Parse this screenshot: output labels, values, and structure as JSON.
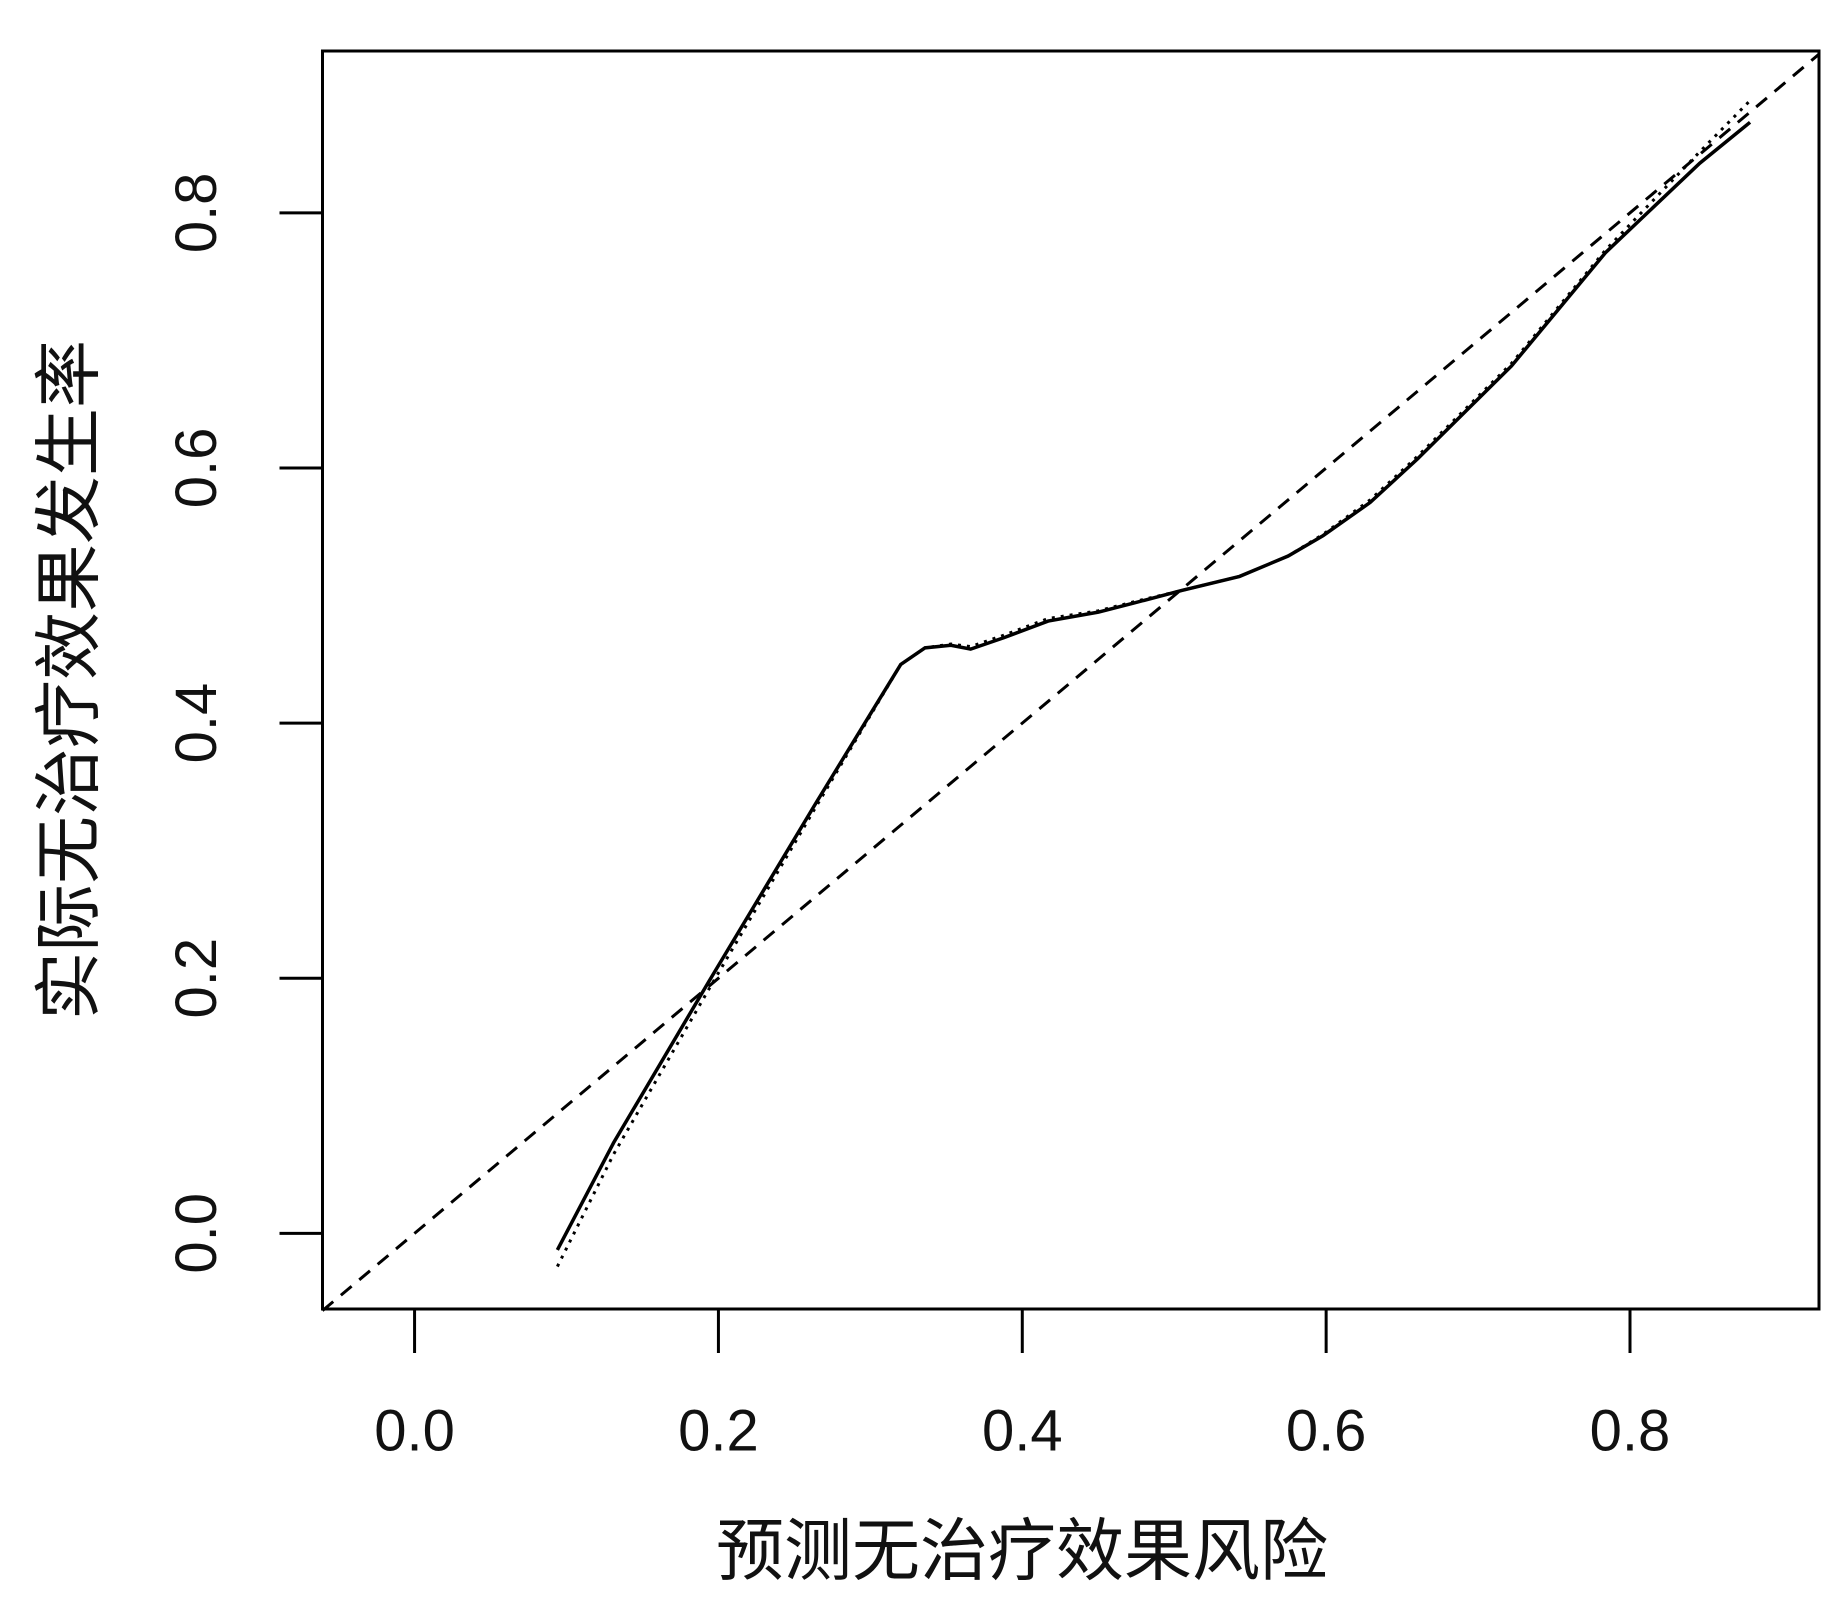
{
  "chart_data": {
    "type": "line",
    "xlabel": "预测无治疗效果风险",
    "ylabel": "实际无治疗效果发生率",
    "xlim": [
      -0.0606,
      0.9244
    ],
    "ylim": [
      -0.0593,
      0.9269
    ],
    "xticks": [
      {
        "value": 0,
        "label": "0.0"
      },
      0.2,
      0.4,
      0.6,
      0.8
    ],
    "yticks": [
      {
        "value": 0,
        "label": "0.0"
      },
      0.2,
      0.4,
      0.6,
      0.8
    ],
    "series": [
      {
        "color": "#000000",
        "dash": "dashed",
        "x": [
          -0.0606,
          0.9244
        ],
        "values": [
          -0.0606,
          0.9244
        ]
      },
      {
        "color": "#000000",
        "dash": "dotted",
        "x": [
          0.094,
          0.131,
          0.194,
          0.264,
          0.302,
          0.32,
          0.336,
          0.353,
          0.366,
          0.388,
          0.417,
          0.45,
          0.473,
          0.505,
          0.543,
          0.575,
          0.598,
          0.629,
          0.66,
          0.722,
          0.784,
          0.846,
          0.879
        ],
        "values": [
          -0.026,
          0.062,
          0.192,
          0.334,
          0.41,
          0.446,
          0.459,
          0.462,
          0.46,
          0.469,
          0.482,
          0.488,
          0.495,
          0.504,
          0.515,
          0.531,
          0.548,
          0.575,
          0.609,
          0.682,
          0.771,
          0.848,
          0.888
        ]
      },
      {
        "color": "#000000",
        "dash": "solid",
        "x": [
          0.094,
          0.131,
          0.194,
          0.264,
          0.302,
          0.32,
          0.336,
          0.353,
          0.366,
          0.388,
          0.417,
          0.45,
          0.473,
          0.505,
          0.543,
          0.575,
          0.598,
          0.629,
          0.66,
          0.722,
          0.784,
          0.846,
          0.879
        ],
        "values": [
          -0.013,
          0.071,
          0.198,
          0.337,
          0.411,
          0.446,
          0.459,
          0.461,
          0.458,
          0.467,
          0.48,
          0.487,
          0.494,
          0.504,
          0.515,
          0.531,
          0.547,
          0.573,
          0.607,
          0.68,
          0.769,
          0.839,
          0.871
        ]
      }
    ]
  }
}
